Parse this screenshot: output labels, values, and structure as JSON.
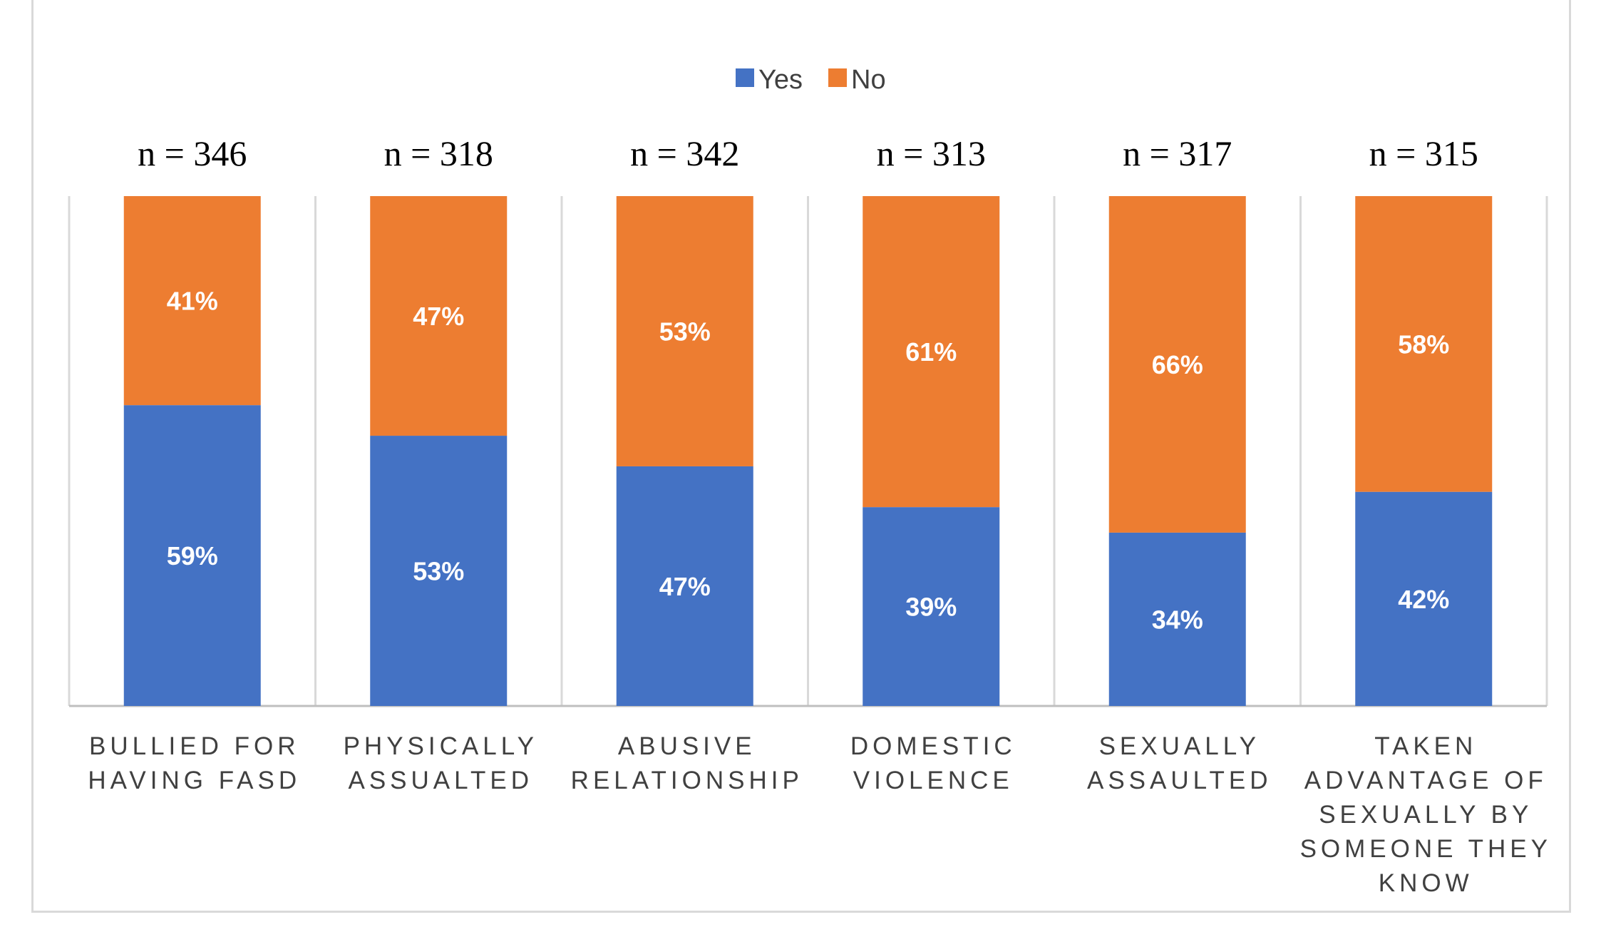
{
  "chart_data": {
    "type": "bar",
    "stacked": true,
    "title": "",
    "xlabel": "",
    "ylabel": "",
    "ylim": [
      0,
      100
    ],
    "grid": false,
    "legend_position": "top-center",
    "categories": [
      [
        "BULLIED FOR",
        "HAVING FASD"
      ],
      [
        "PHYSICALLY",
        "ASSUALTED"
      ],
      [
        "ABUSIVE",
        "RELATIONSHIP"
      ],
      [
        "DOMESTIC",
        "VIOLENCE"
      ],
      [
        "SEXUALLY",
        "ASSAULTED"
      ],
      [
        "TAKEN",
        "ADVANTAGE OF",
        "SEXUALLY BY",
        "SOMEONE THEY",
        "KNOW"
      ]
    ],
    "n_labels": [
      "n = 346",
      "n = 318",
      "n = 342",
      "n = 313",
      "n = 317",
      "n = 315"
    ],
    "series": [
      {
        "name": "Yes",
        "color": "#4472c4",
        "values": [
          59,
          53,
          47,
          39,
          34,
          42
        ],
        "labels": [
          "59%",
          "53%",
          "47%",
          "39%",
          "34%",
          "42%"
        ]
      },
      {
        "name": "No",
        "color": "#ed7d31",
        "values": [
          41,
          47,
          53,
          61,
          66,
          58
        ],
        "labels": [
          "41%",
          "47%",
          "53%",
          "61%",
          "66%",
          "58%"
        ]
      }
    ]
  }
}
